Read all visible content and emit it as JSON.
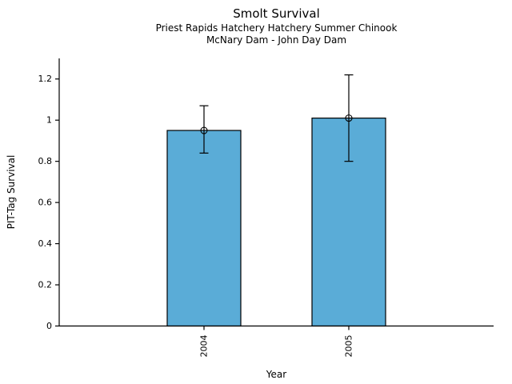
{
  "chart_data": {
    "type": "bar",
    "title": "Smolt Survival",
    "subtitle": [
      "Priest Rapids Hatchery Hatchery Summer Chinook",
      "McNary Dam - John Day Dam"
    ],
    "xlabel": "Year",
    "ylabel": "PIT-Tag Survival",
    "categories": [
      "2004",
      "2005"
    ],
    "values": [
      0.95,
      1.01
    ],
    "error_low": [
      0.84,
      0.8
    ],
    "error_high": [
      1.07,
      1.22
    ],
    "ylim": [
      0,
      1.3
    ],
    "ytick_values": [
      0,
      0.2,
      0.4,
      0.6,
      0.8,
      1.0,
      1.2
    ],
    "ytick_labels": [
      "0",
      "0.2",
      "0.4",
      "0.6",
      "0.8",
      "1",
      "1.2"
    ],
    "grid": false,
    "legend": "none",
    "marker": "open-circle",
    "bar_color": "#5AACD7",
    "bar_edge_color": "#000000",
    "axis_color": "#000000",
    "text_color": "#000000"
  }
}
